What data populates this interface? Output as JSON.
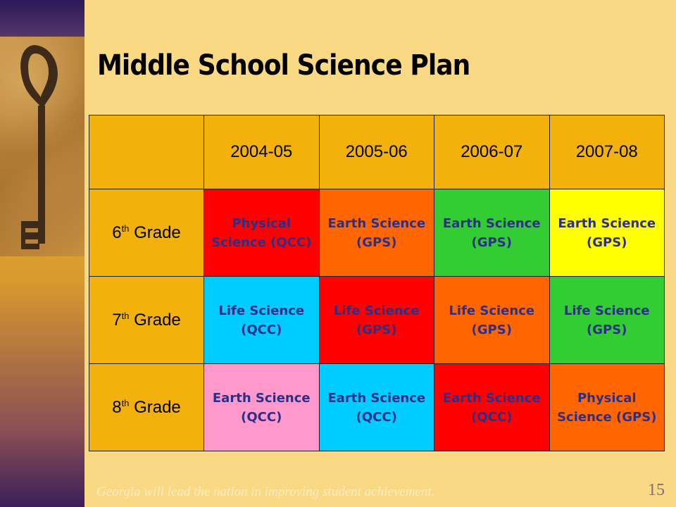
{
  "slide": {
    "title": "Middle School Science Plan",
    "footer": "Georgia will lead the nation in improving student achievement.",
    "page_number": "15"
  },
  "table": {
    "columns": [
      "2004-05",
      "2005-06",
      "2006-07",
      "2007-08"
    ],
    "rows": [
      {
        "grade_num": "6",
        "grade_sup": "th",
        "grade_word": "Grade",
        "cells": [
          {
            "text": "Physical Science (QCC)",
            "color": "#ff0000"
          },
          {
            "text": "Earth Science (GPS)",
            "color": "#ff6600"
          },
          {
            "text": "Earth Science (GPS)",
            "color": "#33cc33"
          },
          {
            "text": "Earth Science (GPS)",
            "color": "#ffff00"
          }
        ]
      },
      {
        "grade_num": "7",
        "grade_sup": "th",
        "grade_word": "Grade",
        "cells": [
          {
            "text": "Life Science (QCC)",
            "color": "#00ccff"
          },
          {
            "text": "Life Science (GPS)",
            "color": "#ff0000"
          },
          {
            "text": "Life Science (GPS)",
            "color": "#ff6600"
          },
          {
            "text": "Life Science (GPS)",
            "color": "#33cc33"
          }
        ]
      },
      {
        "grade_num": "8",
        "grade_sup": "th",
        "grade_word": "Grade",
        "cells": [
          {
            "text": "Earth Science (QCC)",
            "color": "#ff99cc"
          },
          {
            "text": "Earth Science (QCC)",
            "color": "#00ccff"
          },
          {
            "text": "Earth Science (QCC)",
            "color": "#ff0000"
          },
          {
            "text": "Physical Science (GPS)",
            "color": "#ff6600"
          }
        ]
      }
    ]
  },
  "colors": {
    "background": "#f9d984",
    "header": "#f2b10b"
  }
}
